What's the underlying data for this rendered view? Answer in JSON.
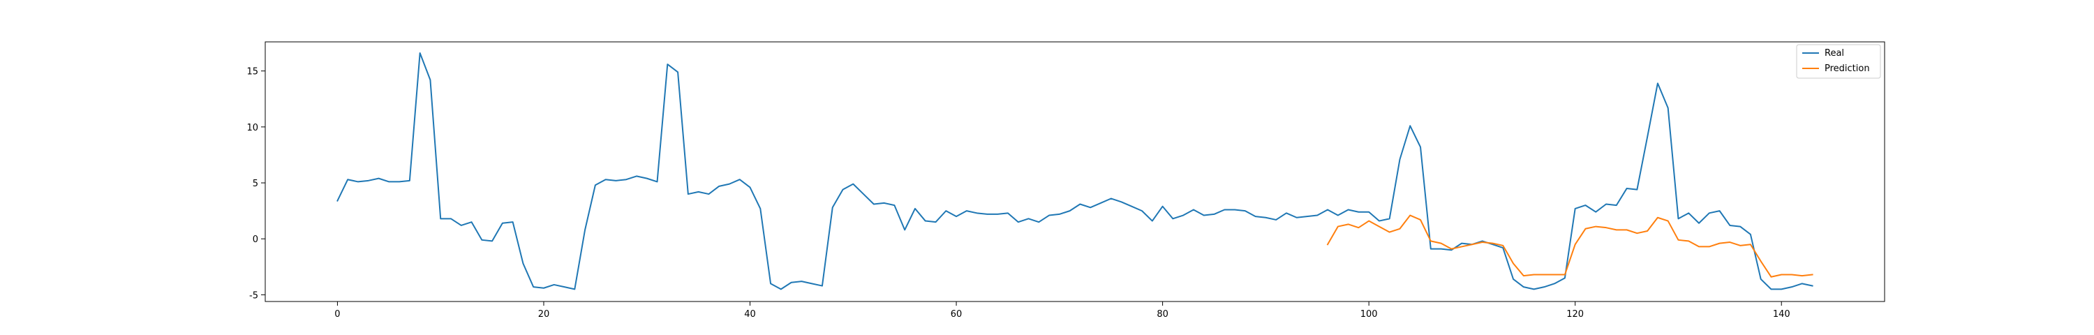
{
  "chart_data": {
    "type": "line",
    "title": "",
    "xlabel": "",
    "ylabel": "",
    "xlim": [
      -7,
      150
    ],
    "ylim": [
      -5.6,
      17.6
    ],
    "x_ticks": [
      0,
      20,
      40,
      60,
      80,
      100,
      120,
      140
    ],
    "y_ticks": [
      -5,
      0,
      5,
      10,
      15
    ],
    "grid": false,
    "legend": "top-right",
    "series": [
      {
        "name": "Real",
        "color": "#1f77b4",
        "x_start": 0,
        "values": [
          3.4,
          5.3,
          5.1,
          5.2,
          5.4,
          5.1,
          5.1,
          5.2,
          16.6,
          14.2,
          1.8,
          1.8,
          1.2,
          1.5,
          -0.1,
          -0.2,
          1.4,
          1.5,
          -2.2,
          -4.3,
          -4.4,
          -4.1,
          -4.3,
          -4.5,
          0.8,
          4.8,
          5.3,
          5.2,
          5.3,
          5.6,
          5.4,
          5.1,
          15.6,
          14.9,
          4.0,
          4.2,
          4.0,
          4.7,
          4.9,
          5.3,
          4.6,
          2.7,
          -4.0,
          -4.5,
          -3.9,
          -3.8,
          -4.0,
          -4.2,
          2.8,
          4.4,
          4.9,
          4.0,
          3.1,
          3.2,
          3.0,
          0.8,
          2.7,
          1.6,
          1.5,
          2.5,
          2.0,
          2.5,
          2.3,
          2.2,
          2.2,
          2.3,
          1.5,
          1.8,
          1.5,
          2.1,
          2.2,
          2.5,
          3.1,
          2.8,
          3.2,
          3.6,
          3.3,
          2.9,
          2.5,
          1.6,
          2.9,
          1.8,
          2.1,
          2.6,
          2.1,
          2.2,
          2.6,
          2.6,
          2.5,
          2.0,
          1.9,
          1.7,
          2.3,
          1.9,
          2.0,
          2.1,
          2.6,
          2.1,
          2.6,
          2.4,
          2.4,
          1.6,
          1.8,
          7.1,
          10.1,
          8.2,
          -0.9,
          -0.9,
          -1.0,
          -0.4,
          -0.5,
          -0.2,
          -0.5,
          -0.8,
          -3.6,
          -4.3,
          -4.5,
          -4.3,
          -4.0,
          -3.5,
          2.7,
          3.0,
          2.4,
          3.1,
          3.0,
          4.5,
          4.4,
          9.1,
          13.9,
          11.7,
          1.8,
          2.3,
          1.4,
          2.3,
          2.5,
          1.2,
          1.1,
          0.4,
          -3.6,
          -4.5,
          -4.5,
          -4.3,
          -4.0,
          -4.2
        ]
      },
      {
        "name": "Prediction",
        "color": "#ff7f0e",
        "x_start": 96,
        "values": [
          -0.5,
          1.1,
          1.3,
          1.0,
          1.6,
          1.1,
          0.6,
          0.9,
          2.1,
          1.7,
          -0.2,
          -0.4,
          -0.9,
          -0.7,
          -0.5,
          -0.3,
          -0.4,
          -0.6,
          -2.2,
          -3.3,
          -3.2,
          -3.2,
          -3.2,
          -3.2,
          -0.5,
          0.9,
          1.1,
          1.0,
          0.8,
          0.8,
          0.5,
          0.7,
          1.9,
          1.6,
          -0.1,
          -0.2,
          -0.7,
          -0.7,
          -0.4,
          -0.3,
          -0.6,
          -0.5,
          -2.0,
          -3.4,
          -3.2,
          -3.2,
          -3.3,
          -3.2
        ]
      }
    ]
  }
}
